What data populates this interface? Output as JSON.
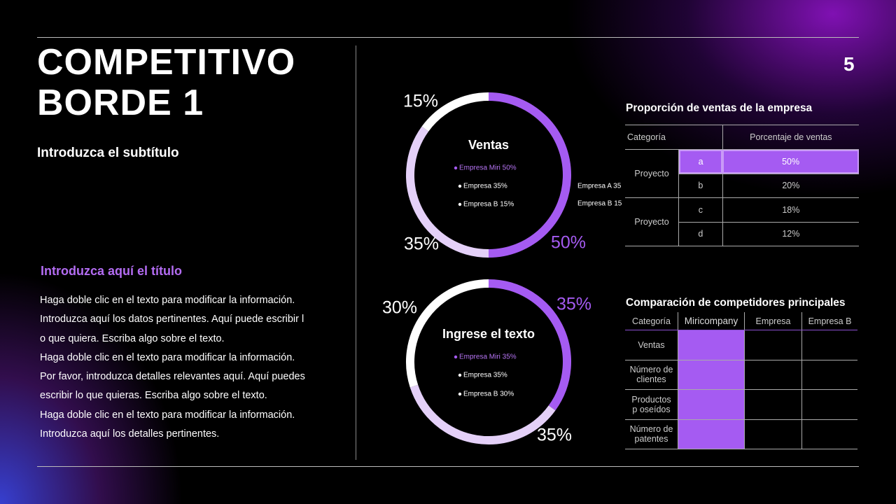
{
  "slide": {
    "title_lines": [
      "COMPETITIVO",
      "BORDE 1"
    ],
    "subtitle": "Introduzca el subtítulo",
    "page_number": "5",
    "section_title": "Introduzca aquí el título",
    "body_lines": [
      "Haga doble clic en el texto para modificar la información.",
      "Introduzca aquí los datos pertinentes. Aquí puede escribir l",
      "o que quiera. Escriba algo sobre el texto.",
      "Haga doble clic en el texto para modificar la información.",
      "Por favor, introduzca detalles relevantes aquí. Aquí puedes",
      "escribir lo que quieras. Escriba algo sobre el texto.",
      "Haga doble clic en el texto para modificar la información.",
      "Introduzca aquí los detalles pertinentes."
    ]
  },
  "chart_data": [
    {
      "type": "pie",
      "title": "Ventas",
      "categories": [
        "Empresa Miri 50%",
        "Empresa 35%",
        "Empresa B 15%"
      ],
      "values": [
        50,
        35,
        15
      ],
      "value_labels": [
        "50%",
        "35%",
        "15%"
      ],
      "colors": [
        "#a55bf2",
        "#e4d0f8",
        "#ffffff"
      ],
      "annotations": [
        "Empresa A 35",
        "Empresa B 15"
      ]
    },
    {
      "type": "pie",
      "title": "Ingrese el texto",
      "categories": [
        "Empresa Miri 35%",
        "Empresa 35%",
        "Empresa B 30%"
      ],
      "values": [
        35,
        35,
        30
      ],
      "value_labels": [
        "35%",
        "35%",
        "30%"
      ],
      "colors": [
        "#a55bf2",
        "#e4d0f8",
        "#ffffff"
      ]
    }
  ],
  "table1": {
    "title": "Proporción de ventas de la empresa",
    "headers": [
      "Categoría",
      "Porcentaje de ventas"
    ],
    "groups": [
      {
        "label": "Proyecto",
        "rows": [
          [
            "a",
            "50%"
          ],
          [
            "b",
            "20%"
          ]
        ]
      },
      {
        "label": "Proyecto",
        "rows": [
          [
            "c",
            "18%"
          ],
          [
            "d",
            "12%"
          ]
        ]
      }
    ]
  },
  "table2": {
    "title": "Comparación de competidores principales",
    "headers": [
      "Categoría",
      "Miricompany",
      "Empresa",
      "Empresa B"
    ],
    "rows": [
      "Ventas",
      "Número de clientes",
      "Productos p oseídos",
      "Número de patentes"
    ]
  }
}
